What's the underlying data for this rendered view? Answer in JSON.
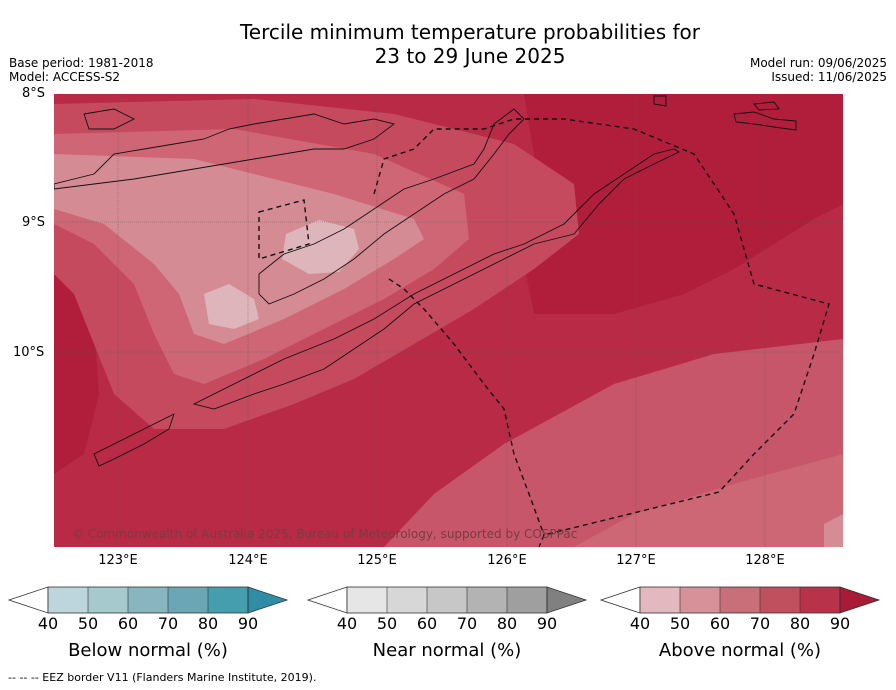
{
  "title_line1": "Tercile minimum temperature probabilities for",
  "title_line2": "23 to 29 June 2025",
  "meta_left": {
    "base_period": "Base period: 1981-2018",
    "model": "Model: ACCESS-S2"
  },
  "meta_right": {
    "model_run": "Model run: 09/06/2025",
    "issued": "Issued: 11/06/2025"
  },
  "lat_labels": [
    "8°S",
    "9°S",
    "10°S"
  ],
  "lon_labels": [
    "123°E",
    "124°E",
    "125°E",
    "126°E",
    "127°E",
    "128°E"
  ],
  "copyright": "© Commonwealth of Australia 2025, Bureau of Meteorology, supported by COSPPac",
  "colorbars": [
    {
      "label": "Below normal (%)",
      "ticks": [
        "40",
        "50",
        "60",
        "70",
        "80",
        "90"
      ],
      "colors": [
        "#ffffff",
        "#bdd5dc",
        "#a6c9ce",
        "#88b5bf",
        "#6aa6b4",
        "#459eae",
        "#2f8ea6"
      ]
    },
    {
      "label": "Near normal (%)",
      "ticks": [
        "40",
        "50",
        "60",
        "70",
        "80",
        "90"
      ],
      "colors": [
        "#ffffff",
        "#e6e6e6",
        "#d7d7d7",
        "#c7c7c7",
        "#b3b3b3",
        "#9f9f9f",
        "#808080"
      ]
    },
    {
      "label": "Above normal (%)",
      "ticks": [
        "40",
        "50",
        "60",
        "70",
        "80",
        "90"
      ],
      "colors": [
        "#ffffff",
        "#e4b8bf",
        "#d69199",
        "#c96f7a",
        "#c1505f",
        "#b8334a",
        "#a81a36"
      ]
    }
  ],
  "footer": "--  --  -- EEZ border V11 (Flanders Marine Institute, 2019).",
  "map_colors": {
    "c90": "#b01e3b",
    "c80": "#bd3550",
    "c70": "#c75063",
    "c60": "#d0707c",
    "c50": "#d99aa3",
    "c40": "#e2bcc2"
  }
}
